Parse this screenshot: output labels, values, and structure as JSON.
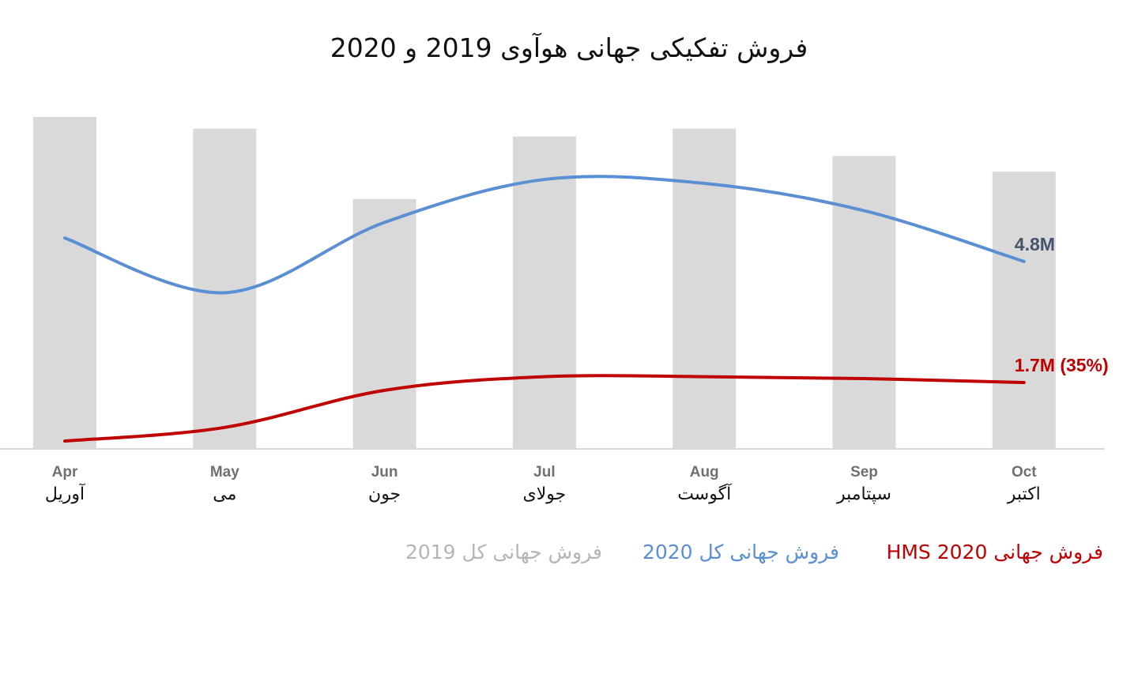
{
  "chart_data": {
    "type": "bar",
    "title": "فروش تفکیکی جهانی هوآوی 2019 و 2020",
    "categories": [
      "Apr",
      "May",
      "Jun",
      "Jul",
      "Aug",
      "Sep",
      "Oct"
    ],
    "categories_fa": [
      "آوریل",
      "می",
      "جون",
      "جولای",
      "آگوست",
      "سپتامبر",
      "اکتبر"
    ],
    "ylim": [
      0,
      8.5
    ],
    "grid": false,
    "legend_placement": "bottom",
    "series": [
      {
        "name": "فروش جهانی کل 2019",
        "type": "bar",
        "color": "#d9d9d9",
        "values": [
          8.5,
          8.2,
          6.4,
          8.0,
          8.2,
          7.5,
          7.1
        ]
      },
      {
        "name": "فروش جهانی کل 2020",
        "type": "line",
        "color": "#5b8fd4",
        "values": [
          5.4,
          4.0,
          5.8,
          6.9,
          6.8,
          6.1,
          4.8
        ],
        "end_label": "4.8M"
      },
      {
        "name": "فروش جهانی HMS 2020",
        "type": "line",
        "color": "#c00000",
        "values": [
          0.2,
          0.55,
          1.5,
          1.85,
          1.85,
          1.8,
          1.7
        ],
        "end_label": "1.7M (35%)"
      }
    ],
    "end_label_colors": [
      "#44546a",
      "#c00000"
    ]
  }
}
